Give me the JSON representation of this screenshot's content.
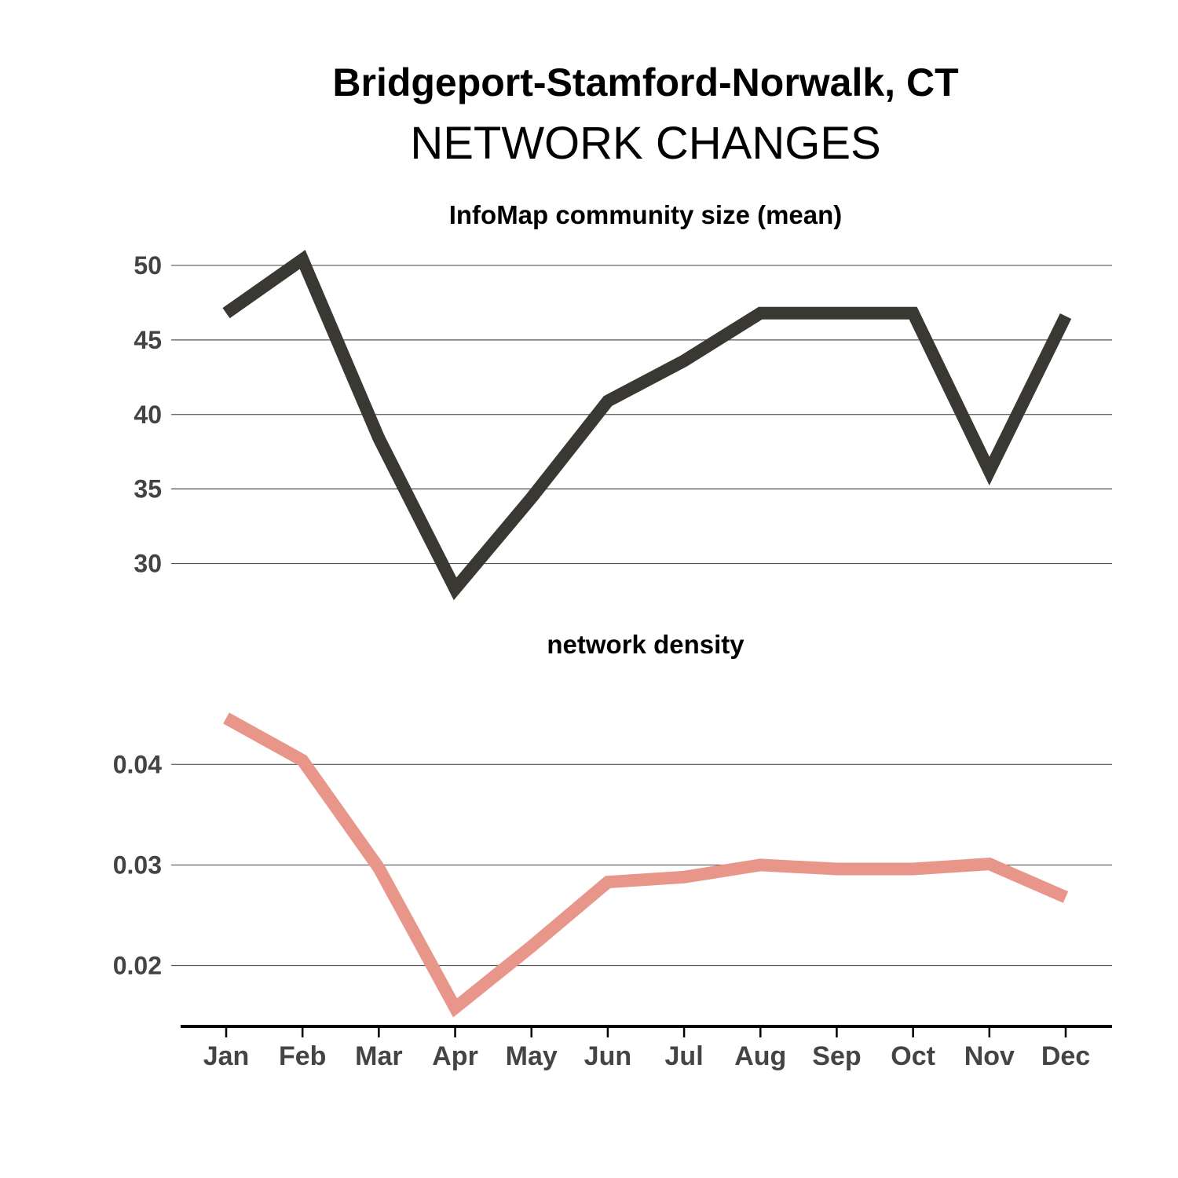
{
  "title": "Bridgeport-Stamford-Norwalk, CT",
  "subtitle": "NETWORK CHANGES",
  "chart_data": [
    {
      "type": "line",
      "title": "InfoMap community size (mean)",
      "categories": [
        "Jan",
        "Feb",
        "Mar",
        "Apr",
        "May",
        "Jun",
        "Jul",
        "Aug",
        "Sep",
        "Oct",
        "Nov",
        "Dec"
      ],
      "values": [
        46.8,
        50.4,
        38.4,
        28.3,
        34.4,
        40.9,
        43.6,
        46.8,
        46.8,
        46.8,
        36.2,
        46.6
      ],
      "yticks": [
        30,
        35,
        40,
        45,
        50
      ],
      "ylim": [
        27.5,
        52
      ],
      "color": "#3a3832",
      "grid": true
    },
    {
      "type": "line",
      "title": "network density",
      "categories": [
        "Jan",
        "Feb",
        "Mar",
        "Apr",
        "May",
        "Jun",
        "Jul",
        "Aug",
        "Sep",
        "Oct",
        "Nov",
        "Dec"
      ],
      "values": [
        0.0446,
        0.0404,
        0.0297,
        0.0158,
        0.0219,
        0.0283,
        0.0288,
        0.03,
        0.0296,
        0.0296,
        0.0301,
        0.0268
      ],
      "yticks": [
        "0.02",
        "0.03",
        "0.04"
      ],
      "ylim": [
        0.0145,
        0.049
      ],
      "color": "#e8968a",
      "grid": true
    }
  ]
}
